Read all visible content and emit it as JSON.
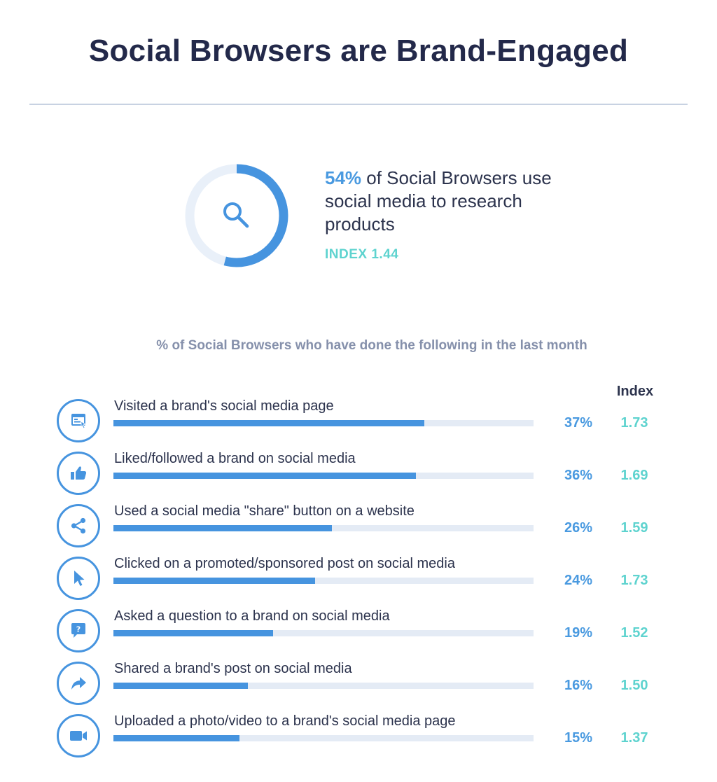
{
  "title": "Social Browsers are Brand-Engaged",
  "headline_stat": {
    "percent": "54%",
    "text": " of Social Browsers use social media to research products",
    "value": 54,
    "index_label": "INDEX 1.44",
    "icon": "magnifier-icon"
  },
  "colors": {
    "accent_blue": "#4694df",
    "accent_teal": "#5ed3cf",
    "track": "#e4ebf5",
    "donut_track": "#e9f0f9",
    "text_dark": "#23294a"
  },
  "chart_data": {
    "type": "bar",
    "orientation": "horizontal",
    "title": "% of Social Browsers who have done the following in the last month",
    "index_header": "Index",
    "xlim": [
      0,
      50
    ],
    "categories": [
      "Visited a brand's social media page",
      "Liked/followed a brand on social media",
      "Used a social media \"share\" button on a website",
      "Clicked on a promoted/sponsored post on social media",
      "Asked a question to a brand on social media",
      "Shared a brand's post on social media",
      "Uploaded a photo/video to a brand's social media page"
    ],
    "values": [
      37,
      36,
      26,
      24,
      19,
      16,
      15
    ],
    "value_labels": [
      "37%",
      "36%",
      "26%",
      "24%",
      "19%",
      "16%",
      "15%"
    ],
    "index": [
      "1.73",
      "1.69",
      "1.59",
      "1.73",
      "1.52",
      "1.50",
      "1.37"
    ],
    "icons": [
      "webpage-icon",
      "thumbs-up-icon",
      "share-icon",
      "cursor-icon",
      "question-bubble-icon",
      "forward-arrow-icon",
      "video-camera-icon"
    ]
  }
}
